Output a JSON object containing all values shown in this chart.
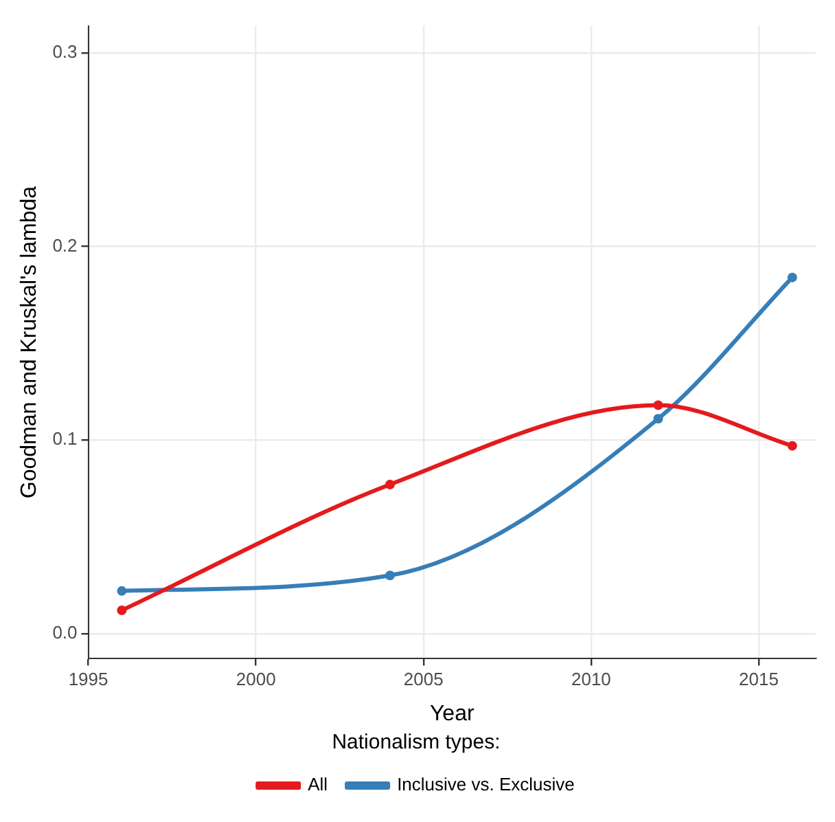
{
  "chart_data": {
    "type": "line",
    "xlabel": "Year",
    "ylabel": "Goodman and Kruskal's lambda",
    "legend_title": "Nationalism types:",
    "x": [
      1996,
      2004,
      2012,
      2016
    ],
    "series": [
      {
        "name": "All",
        "color": "#e41a1c",
        "values": [
          0.012,
          0.077,
          0.118,
          0.097
        ]
      },
      {
        "name": "Inclusive vs. Exclusive",
        "color": "#377eb8",
        "values": [
          0.022,
          0.03,
          0.111,
          0.184
        ]
      }
    ],
    "xlim": [
      1995,
      2016.7
    ],
    "xticks": [
      1995,
      2000,
      2005,
      2010,
      2015
    ],
    "ylim": [
      -0.013,
      0.314
    ],
    "yticks": [
      {
        "value": 0,
        "label": "0.0"
      },
      {
        "value": 0.1,
        "label": "0.1"
      },
      {
        "value": 0.2,
        "label": "0.2"
      },
      {
        "value": 0.3,
        "label": "0.3"
      }
    ],
    "grid": true,
    "legend": "bottom",
    "marker": "circle",
    "line_style": "solid"
  }
}
